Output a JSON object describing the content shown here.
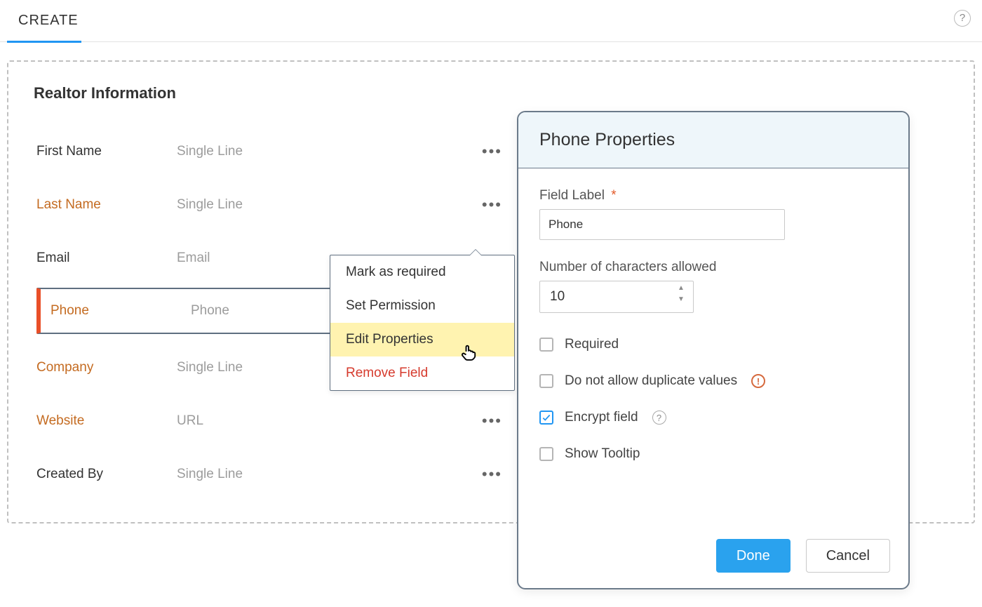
{
  "tabbar": {
    "active_tab": "CREATE"
  },
  "section": {
    "title": "Realtor Information"
  },
  "fields": [
    {
      "label": "First Name",
      "type": "Single Line",
      "orange": false,
      "selected": false
    },
    {
      "label": "Last Name",
      "type": "Single Line",
      "orange": true,
      "selected": false
    },
    {
      "label": "Email",
      "type": "Email",
      "orange": false,
      "selected": false
    },
    {
      "label": "Phone",
      "type": "Phone",
      "orange": true,
      "selected": true
    },
    {
      "label": "Company",
      "type": "Single Line",
      "orange": true,
      "selected": false
    },
    {
      "label": "Website",
      "type": "URL",
      "orange": true,
      "selected": false
    },
    {
      "label": "Created By",
      "type": "Single Line",
      "orange": false,
      "selected": false
    }
  ],
  "context_menu": {
    "items": [
      {
        "label": "Mark as required",
        "state": "normal"
      },
      {
        "label": "Set Permission",
        "state": "normal"
      },
      {
        "label": "Edit Properties",
        "state": "highlight"
      },
      {
        "label": "Remove Field",
        "state": "danger"
      }
    ]
  },
  "panel": {
    "title": "Phone Properties",
    "field_label_caption": "Field Label",
    "field_label_value": "Phone",
    "num_chars_caption": "Number of characters allowed",
    "num_chars_value": "10",
    "checks": {
      "required": {
        "label": "Required",
        "checked": false
      },
      "no_dupe": {
        "label": "Do not allow duplicate values",
        "checked": false
      },
      "encrypt": {
        "label": "Encrypt field",
        "checked": true
      },
      "tooltip": {
        "label": "Show Tooltip",
        "checked": false
      }
    },
    "actions": {
      "primary": "Done",
      "secondary": "Cancel"
    }
  },
  "colors": {
    "accent_orange": "#c46b21",
    "accent_blue": "#2aa2ee",
    "danger": "#d63b2e",
    "panel_border": "#6b7a8a",
    "highlight_bg": "#fff3b0"
  }
}
